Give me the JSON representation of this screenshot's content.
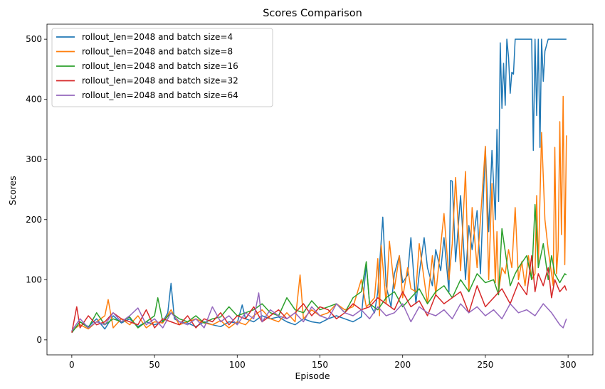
{
  "chart_data": {
    "type": "line",
    "title": "Scores Comparison",
    "xlabel": "Episode",
    "ylabel": "Scores",
    "xlim": [
      -15,
      315
    ],
    "ylim": [
      -25,
      525
    ],
    "xticks": [
      0,
      50,
      100,
      150,
      200,
      250,
      300
    ],
    "yticks": [
      0,
      100,
      200,
      300,
      400,
      500
    ],
    "grid": false,
    "legend_position": "top-left",
    "series": [
      {
        "name": "rollout_len=2048 and batch size=4",
        "color": "#1f77b4",
        "x": [
          0,
          5,
          10,
          15,
          20,
          25,
          30,
          35,
          40,
          45,
          50,
          55,
          58,
          60,
          62,
          65,
          70,
          75,
          80,
          85,
          90,
          95,
          100,
          103,
          105,
          110,
          115,
          120,
          125,
          130,
          135,
          140,
          145,
          150,
          155,
          160,
          165,
          170,
          175,
          178,
          180,
          183,
          185,
          188,
          190,
          193,
          195,
          198,
          200,
          203,
          205,
          208,
          210,
          213,
          215,
          218,
          220,
          223,
          225,
          228,
          229,
          230,
          232,
          235,
          238,
          240,
          242,
          245,
          247,
          250,
          252,
          254,
          256,
          257,
          258,
          259,
          260,
          261,
          262,
          263,
          264,
          265,
          266,
          267,
          268,
          270,
          272,
          275,
          278,
          279,
          280,
          281,
          282,
          283,
          284,
          285,
          286,
          288,
          290,
          292,
          295,
          298,
          299
        ],
        "y": [
          12,
          30,
          22,
          35,
          18,
          40,
          28,
          35,
          22,
          30,
          25,
          30,
          45,
          94,
          35,
          30,
          28,
          22,
          30,
          25,
          22,
          30,
          28,
          58,
          35,
          30,
          40,
          35,
          38,
          30,
          25,
          35,
          30,
          28,
          35,
          40,
          35,
          30,
          38,
          125,
          60,
          45,
          80,
          204,
          90,
          55,
          110,
          140,
          95,
          108,
          170,
          60,
          110,
          170,
          120,
          90,
          150,
          115,
          170,
          80,
          265,
          264,
          130,
          240,
          100,
          190,
          150,
          215,
          110,
          320,
          180,
          315,
          200,
          350,
          230,
          494,
          385,
          460,
          390,
          500,
          470,
          410,
          445,
          442,
          500,
          500,
          500,
          500,
          500,
          315,
          500,
          373,
          500,
          320,
          500,
          430,
          480,
          500,
          500,
          500,
          500,
          500,
          500
        ]
      },
      {
        "name": "rollout_len=2048 and batch size=8",
        "color": "#ff7f0e",
        "x": [
          0,
          5,
          10,
          15,
          20,
          22,
          25,
          30,
          35,
          40,
          45,
          50,
          55,
          60,
          65,
          70,
          75,
          80,
          85,
          90,
          95,
          100,
          105,
          110,
          115,
          120,
          125,
          130,
          135,
          138,
          140,
          145,
          150,
          155,
          160,
          165,
          170,
          175,
          178,
          180,
          183,
          185,
          186,
          187,
          190,
          192,
          195,
          198,
          200,
          203,
          205,
          208,
          210,
          215,
          218,
          220,
          225,
          228,
          230,
          232,
          235,
          238,
          240,
          242,
          245,
          247,
          250,
          252,
          254,
          256,
          257,
          258,
          260,
          262,
          264,
          266,
          268,
          270,
          272,
          274,
          276,
          278,
          280,
          281,
          282,
          284,
          286,
          288,
          290,
          291,
          292,
          293,
          294,
          295,
          296,
          297,
          298,
          299
        ],
        "y": [
          15,
          25,
          18,
          30,
          40,
          67,
          20,
          35,
          25,
          40,
          20,
          30,
          28,
          50,
          25,
          30,
          35,
          28,
          25,
          32,
          20,
          30,
          25,
          40,
          50,
          35,
          30,
          45,
          30,
          108,
          35,
          50,
          40,
          45,
          60,
          50,
          55,
          100,
          55,
          60,
          70,
          135,
          40,
          157,
          60,
          164,
          85,
          140,
          70,
          120,
          85,
          80,
          160,
          60,
          140,
          75,
          210,
          100,
          160,
          270,
          115,
          280,
          80,
          220,
          120,
          200,
          322,
          100,
          260,
          95,
          180,
          80,
          120,
          110,
          150,
          120,
          220,
          100,
          130,
          90,
          140,
          100,
          110,
          240,
          120,
          345,
          200,
          150,
          110,
          90,
          320,
          110,
          150,
          363,
          175,
          405,
          125,
          340
        ]
      },
      {
        "name": "rollout_len=2048 and batch size=16",
        "color": "#2ca02c",
        "x": [
          0,
          5,
          10,
          15,
          20,
          25,
          30,
          35,
          40,
          45,
          50,
          52,
          55,
          60,
          65,
          70,
          75,
          80,
          85,
          90,
          95,
          100,
          105,
          110,
          115,
          120,
          125,
          130,
          135,
          140,
          145,
          150,
          155,
          160,
          165,
          170,
          175,
          178,
          180,
          185,
          190,
          195,
          200,
          205,
          210,
          215,
          220,
          225,
          230,
          235,
          240,
          245,
          250,
          255,
          258,
          260,
          265,
          268,
          270,
          275,
          278,
          280,
          282,
          285,
          288,
          290,
          292,
          295,
          298,
          299
        ],
        "y": [
          12,
          30,
          20,
          45,
          25,
          35,
          30,
          38,
          20,
          30,
          40,
          70,
          30,
          45,
          35,
          30,
          40,
          28,
          35,
          38,
          55,
          40,
          45,
          50,
          60,
          45,
          40,
          70,
          50,
          45,
          65,
          50,
          55,
          60,
          45,
          70,
          80,
          130,
          60,
          50,
          70,
          80,
          55,
          70,
          85,
          60,
          80,
          90,
          70,
          100,
          80,
          110,
          95,
          100,
          75,
          185,
          90,
          110,
          120,
          140,
          100,
          225,
          120,
          160,
          100,
          140,
          110,
          95,
          110,
          108
        ]
      },
      {
        "name": "rollout_len=2048 and batch size=32",
        "color": "#d62728",
        "x": [
          0,
          3,
          5,
          10,
          15,
          20,
          25,
          30,
          35,
          40,
          45,
          50,
          55,
          60,
          65,
          70,
          75,
          80,
          85,
          90,
          95,
          100,
          105,
          110,
          115,
          120,
          125,
          130,
          135,
          140,
          145,
          150,
          155,
          160,
          165,
          170,
          175,
          180,
          185,
          190,
          195,
          200,
          205,
          210,
          215,
          220,
          225,
          230,
          235,
          240,
          245,
          250,
          255,
          260,
          265,
          270,
          275,
          278,
          280,
          282,
          285,
          288,
          290,
          292,
          295,
          298,
          299
        ],
        "y": [
          12,
          55,
          20,
          40,
          25,
          30,
          45,
          35,
          30,
          25,
          50,
          20,
          35,
          30,
          25,
          40,
          20,
          35,
          30,
          45,
          25,
          40,
          35,
          55,
          30,
          40,
          50,
          35,
          45,
          60,
          40,
          55,
          50,
          35,
          45,
          60,
          50,
          55,
          70,
          60,
          50,
          80,
          55,
          65,
          40,
          75,
          60,
          70,
          80,
          45,
          90,
          55,
          70,
          85,
          60,
          95,
          75,
          140,
          80,
          110,
          90,
          120,
          70,
          100,
          80,
          90,
          82
        ]
      },
      {
        "name": "rollout_len=2048 and batch size=64",
        "color": "#9467bd",
        "x": [
          0,
          5,
          10,
          15,
          20,
          25,
          30,
          35,
          40,
          45,
          50,
          55,
          60,
          65,
          70,
          75,
          80,
          85,
          90,
          95,
          100,
          105,
          110,
          113,
          115,
          120,
          125,
          130,
          135,
          140,
          145,
          150,
          155,
          160,
          165,
          170,
          175,
          180,
          185,
          190,
          195,
          200,
          205,
          210,
          215,
          220,
          225,
          230,
          235,
          240,
          245,
          250,
          255,
          260,
          265,
          270,
          275,
          280,
          285,
          290,
          295,
          297,
          299
        ],
        "y": [
          15,
          35,
          20,
          30,
          25,
          45,
          30,
          40,
          53,
          25,
          35,
          20,
          45,
          30,
          25,
          35,
          20,
          55,
          30,
          40,
          25,
          45,
          35,
          78,
          30,
          50,
          40,
          35,
          45,
          30,
          55,
          40,
          35,
          60,
          45,
          40,
          50,
          35,
          55,
          40,
          45,
          60,
          30,
          55,
          45,
          40,
          50,
          35,
          60,
          45,
          55,
          40,
          50,
          35,
          60,
          45,
          50,
          40,
          60,
          45,
          25,
          20,
          35
        ]
      }
    ]
  }
}
